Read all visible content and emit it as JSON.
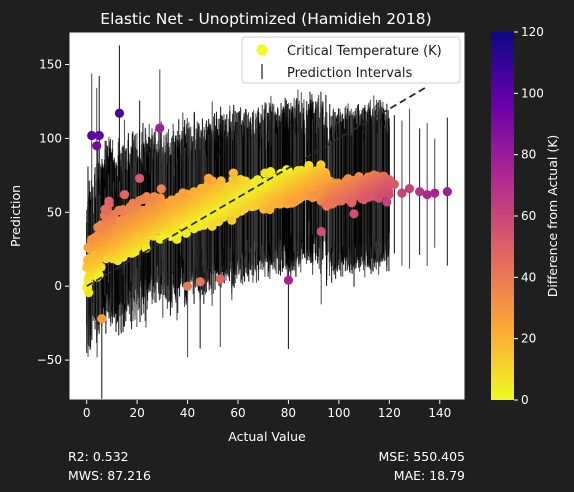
{
  "chart_data": {
    "type": "scatter",
    "title": "Elastic Net - Unoptimized (Hamidieh 2018)",
    "xlabel": "Actual Value",
    "ylabel": "Prediction",
    "xlim": [
      -7,
      150
    ],
    "ylim": [
      -77,
      172
    ],
    "xticks": [
      0,
      20,
      40,
      60,
      80,
      100,
      120,
      140
    ],
    "yticks": [
      -50,
      0,
      50,
      100,
      150
    ],
    "grid": false,
    "legend_placement": "top-right",
    "legend": {
      "scatter_label": "Critical Temperature (K)",
      "errorbar_label": "Prediction Intervals"
    },
    "reference_line": {
      "style": "dashed",
      "from": [
        0,
        0
      ],
      "to": [
        135,
        135
      ]
    },
    "colorbar": {
      "label": "Difference from Actual (K)",
      "min": 0,
      "max": 120,
      "ticks": [
        0,
        20,
        40,
        60,
        80,
        100,
        120
      ],
      "colormap": "plasma_r",
      "stops": [
        "#f0f921",
        "#fca636",
        "#e16462",
        "#b12a90",
        "#6a00a8",
        "#0d0887"
      ]
    },
    "highlighted_points": [
      {
        "x": 2,
        "y": 102
      },
      {
        "x": 5,
        "y": 102
      },
      {
        "x": 4,
        "y": 95
      },
      {
        "x": 13,
        "y": 117
      },
      {
        "x": 29,
        "y": 107
      },
      {
        "x": 80,
        "y": 4
      },
      {
        "x": 40,
        "y": 0
      },
      {
        "x": 45,
        "y": 3
      },
      {
        "x": 53,
        "y": 5
      },
      {
        "x": 143,
        "y": 64
      },
      {
        "x": 135,
        "y": 62
      },
      {
        "x": 132,
        "y": 64
      },
      {
        "x": 128,
        "y": 66
      },
      {
        "x": 122,
        "y": 69
      },
      {
        "x": 125,
        "y": 63
      },
      {
        "x": 6,
        "y": -22
      },
      {
        "x": 15,
        "y": 62
      },
      {
        "x": 21,
        "y": 73
      },
      {
        "x": 93,
        "y": 37
      },
      {
        "x": 119,
        "y": 57
      },
      {
        "x": 138,
        "y": 63
      },
      {
        "x": 106,
        "y": 49
      }
    ],
    "cloud": {
      "segments": [
        {
          "x_range": [
            0,
            10
          ],
          "center": [
            14,
            40
          ],
          "spread": 22
        },
        {
          "x_range": [
            10,
            30
          ],
          "center": [
            30,
            50
          ],
          "spread": 20
        },
        {
          "x_range": [
            30,
            60
          ],
          "center": [
            45,
            62
          ],
          "spread": 18
        },
        {
          "x_range": [
            60,
            95
          ],
          "center": [
            60,
            72
          ],
          "spread": 14
        },
        {
          "x_range": [
            95,
            120
          ],
          "center": [
            62,
            70
          ],
          "spread": 10
        }
      ]
    }
  },
  "metrics": {
    "r2": "R2: 0.532",
    "mws": "MWS: 87.216",
    "mse": "MSE: 550.405",
    "mae": "MAE: 18.79"
  }
}
